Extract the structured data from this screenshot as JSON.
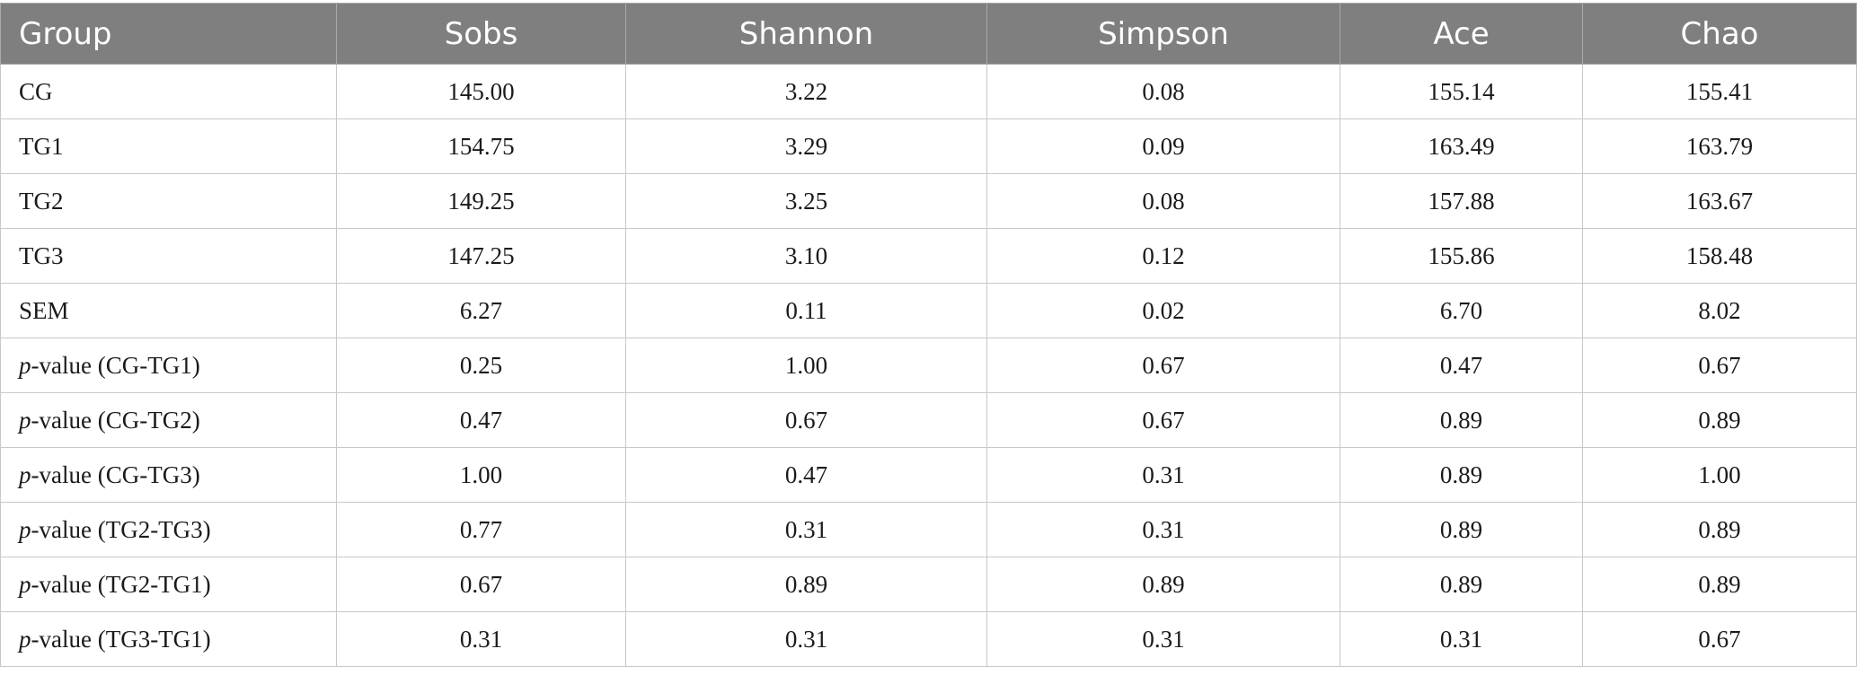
{
  "table": {
    "columns": [
      "Group",
      "Sobs",
      "Shannon",
      "Simpson",
      "Ace",
      "Chao"
    ],
    "rows": [
      {
        "prefix": "",
        "label": "CG",
        "values": [
          "145.00",
          "3.22",
          "0.08",
          "155.14",
          "155.41"
        ]
      },
      {
        "prefix": "",
        "label": "TG1",
        "values": [
          "154.75",
          "3.29",
          "0.09",
          "163.49",
          "163.79"
        ]
      },
      {
        "prefix": "",
        "label": "TG2",
        "values": [
          "149.25",
          "3.25",
          "0.08",
          "157.88",
          "163.67"
        ]
      },
      {
        "prefix": "",
        "label": "TG3",
        "values": [
          "147.25",
          "3.10",
          "0.12",
          "155.86",
          "158.48"
        ]
      },
      {
        "prefix": "",
        "label": "SEM",
        "values": [
          "6.27",
          "0.11",
          "0.02",
          "6.70",
          "8.02"
        ]
      },
      {
        "prefix": "p",
        "label": "-value (CG-TG1)",
        "values": [
          "0.25",
          "1.00",
          "0.67",
          "0.47",
          "0.67"
        ]
      },
      {
        "prefix": "p",
        "label": "-value (CG-TG2)",
        "values": [
          "0.47",
          "0.67",
          "0.67",
          "0.89",
          "0.89"
        ]
      },
      {
        "prefix": "p",
        "label": "-value (CG-TG3)",
        "values": [
          "1.00",
          "0.47",
          "0.31",
          "0.89",
          "1.00"
        ]
      },
      {
        "prefix": "p",
        "label": "-value (TG2-TG3)",
        "values": [
          "0.77",
          "0.31",
          "0.31",
          "0.89",
          "0.89"
        ]
      },
      {
        "prefix": "p",
        "label": "-value (TG2-TG1)",
        "values": [
          "0.67",
          "0.89",
          "0.89",
          "0.89",
          "0.89"
        ]
      },
      {
        "prefix": "p",
        "label": "-value (TG3-TG1)",
        "values": [
          "0.31",
          "0.31",
          "0.31",
          "0.31",
          "0.67"
        ]
      }
    ]
  },
  "colors": {
    "header_background": "#7f7f7f",
    "header_text": "#ffffff",
    "grid_lines": "#c8c8c8",
    "body_text": "#1a1a1a"
  }
}
